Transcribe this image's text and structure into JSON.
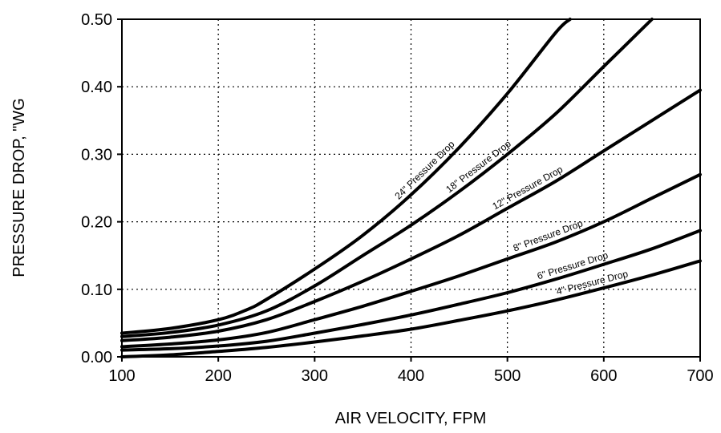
{
  "chart_data": {
    "type": "line",
    "title": "",
    "xlabel": "AIR VELOCITY, FPM",
    "ylabel": "PRESSURE DROP, \"WG",
    "xlim": [
      100,
      700
    ],
    "ylim": [
      0,
      0.5
    ],
    "xticks": [
      100,
      200,
      300,
      400,
      500,
      600,
      700
    ],
    "yticks": [
      "0.00",
      "0.10",
      "0.20",
      "0.30",
      "0.40",
      "0.50"
    ],
    "grid": true,
    "series": [
      {
        "name": "24\" Pressure Drop",
        "x": [
          100,
          150,
          200,
          230,
          250,
          300,
          350,
          400,
          450,
          500,
          550,
          565
        ],
        "y": [
          0.035,
          0.042,
          0.055,
          0.07,
          0.085,
          0.13,
          0.18,
          0.24,
          0.31,
          0.39,
          0.48,
          0.5
        ]
      },
      {
        "name": "18\" Pressure Drop",
        "x": [
          100,
          150,
          200,
          250,
          300,
          350,
          400,
          450,
          500,
          550,
          600,
          650
        ],
        "y": [
          0.03,
          0.036,
          0.047,
          0.068,
          0.105,
          0.15,
          0.195,
          0.245,
          0.3,
          0.36,
          0.43,
          0.5
        ]
      },
      {
        "name": "12\" Pressure Drop",
        "x": [
          100,
          150,
          200,
          250,
          300,
          350,
          400,
          450,
          500,
          550,
          600,
          650,
          700
        ],
        "y": [
          0.024,
          0.029,
          0.038,
          0.055,
          0.082,
          0.112,
          0.145,
          0.18,
          0.22,
          0.26,
          0.305,
          0.35,
          0.395
        ]
      },
      {
        "name": "8\" Pressure Drop",
        "x": [
          100,
          150,
          200,
          250,
          300,
          350,
          400,
          450,
          500,
          550,
          600,
          650,
          700
        ],
        "y": [
          0.015,
          0.019,
          0.025,
          0.036,
          0.055,
          0.075,
          0.097,
          0.12,
          0.145,
          0.17,
          0.2,
          0.235,
          0.27
        ]
      },
      {
        "name": "6\" Pressure Drop",
        "x": [
          100,
          150,
          200,
          250,
          300,
          350,
          400,
          450,
          500,
          550,
          600,
          650,
          700
        ],
        "y": [
          0.01,
          0.012,
          0.016,
          0.023,
          0.035,
          0.048,
          0.062,
          0.078,
          0.095,
          0.115,
          0.137,
          0.16,
          0.187
        ]
      },
      {
        "name": "4\" Pressure Drop",
        "x": [
          100,
          150,
          200,
          250,
          300,
          350,
          400,
          450,
          500,
          550,
          600,
          650,
          700
        ],
        "y": [
          0.0,
          0.003,
          0.008,
          0.014,
          0.022,
          0.031,
          0.041,
          0.054,
          0.068,
          0.084,
          0.102,
          0.121,
          0.142
        ]
      }
    ]
  }
}
